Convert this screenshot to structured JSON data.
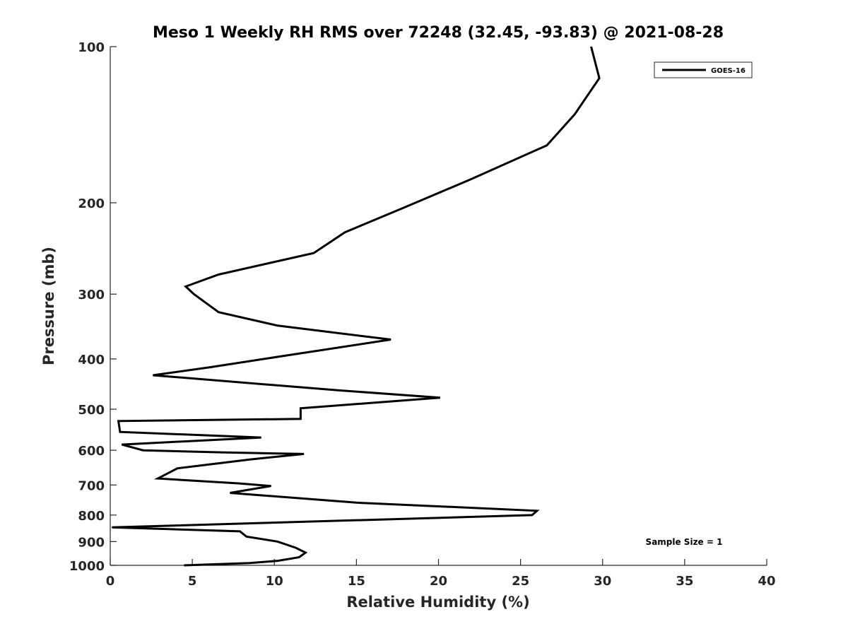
{
  "chart_data": {
    "type": "line",
    "title": "Meso 1 Weekly RH RMS over 72248 (32.45, -93.83) @ 2021-08-28",
    "xlabel": "Relative Humidity (%)",
    "ylabel": "Pressure (mb)",
    "xlim": [
      0,
      40
    ],
    "ylim": [
      100,
      1000
    ],
    "yscale": "log",
    "y_reversed": true,
    "grid": false,
    "legend_position": "top-right",
    "xticks": [
      0,
      5,
      10,
      15,
      20,
      25,
      30,
      35,
      40
    ],
    "yticks": [
      100,
      200,
      300,
      400,
      500,
      600,
      700,
      800,
      900,
      1000
    ],
    "series": [
      {
        "name": "GOES-16",
        "color": "#000000",
        "points": [
          [
            4.5,
            1000
          ],
          [
            8.5,
            990
          ],
          [
            10.2,
            980
          ],
          [
            11.5,
            965
          ],
          [
            11.9,
            945
          ],
          [
            11.3,
            925
          ],
          [
            10.2,
            900
          ],
          [
            8.3,
            880
          ],
          [
            7.9,
            860
          ],
          [
            0.1,
            845
          ],
          [
            25.7,
            800
          ],
          [
            26.0,
            785
          ],
          [
            15.0,
            757
          ],
          [
            7.3,
            725
          ],
          [
            9.8,
            703
          ],
          [
            7.8,
            695
          ],
          [
            2.9,
            680
          ],
          [
            4.1,
            650
          ],
          [
            8.5,
            625
          ],
          [
            11.8,
            610
          ],
          [
            7.0,
            606
          ],
          [
            2.0,
            600
          ],
          [
            0.7,
            585
          ],
          [
            9.2,
            567
          ],
          [
            0.6,
            553
          ],
          [
            0.5,
            527
          ],
          [
            11.6,
            522
          ],
          [
            11.6,
            498
          ],
          [
            20.1,
            475
          ],
          [
            14.0,
            460
          ],
          [
            2.6,
            430
          ],
          [
            6.1,
            415
          ],
          [
            10.5,
            395
          ],
          [
            17.1,
            367
          ],
          [
            10.2,
            345
          ],
          [
            6.6,
            325
          ],
          [
            5.1,
            300
          ],
          [
            4.6,
            290
          ],
          [
            6.6,
            275
          ],
          [
            12.4,
            250
          ],
          [
            14.3,
            228
          ],
          [
            17.8,
            205
          ],
          [
            22.0,
            180
          ],
          [
            26.6,
            155
          ],
          [
            28.3,
            135
          ],
          [
            29.8,
            115
          ],
          [
            29.3,
            100
          ]
        ]
      }
    ],
    "annotations": [
      "Sample Size = 1"
    ]
  }
}
